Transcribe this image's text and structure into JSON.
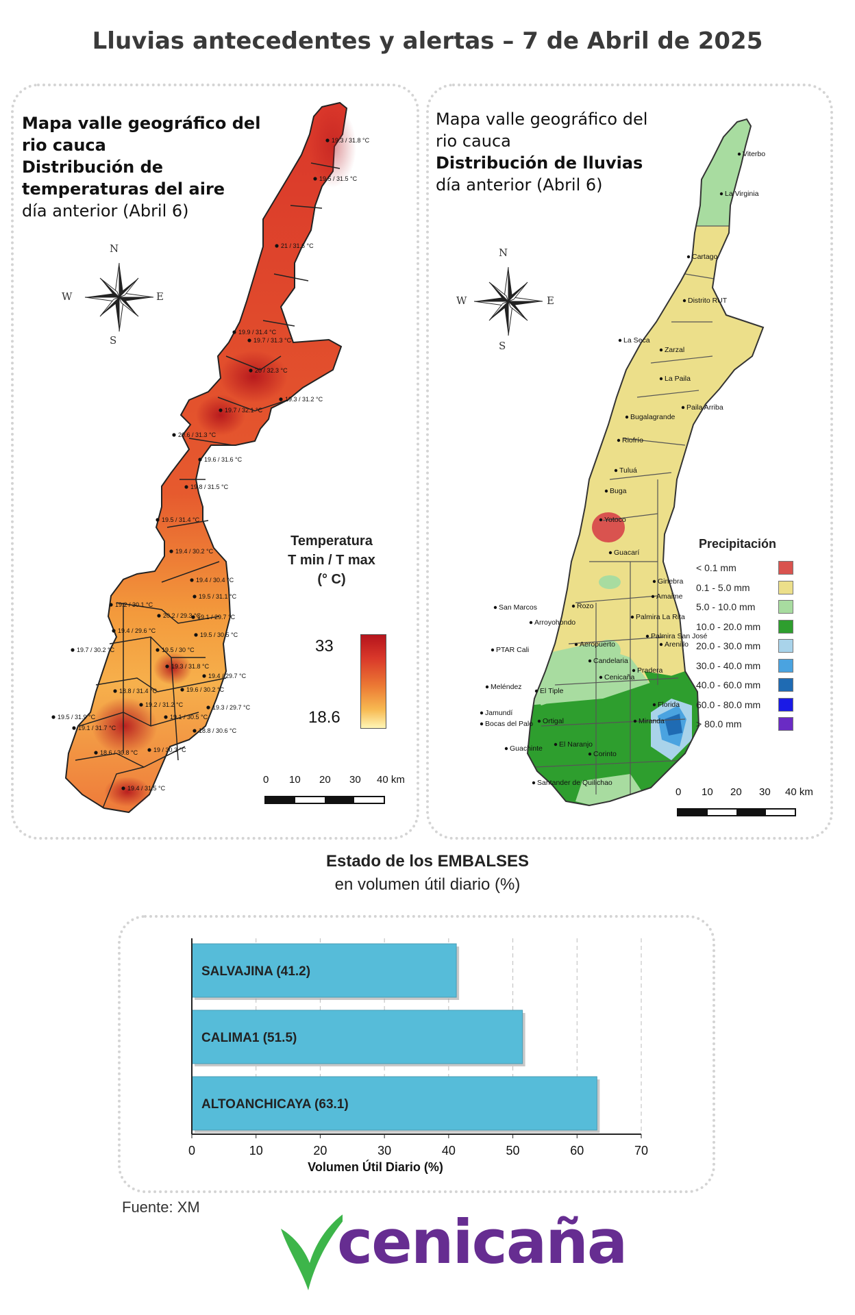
{
  "title": "Lluvias antecedentes y alertas – 7 de Abril de 2025",
  "temp_map": {
    "title_lines_bold": [
      "Mapa valle geográfico del",
      "rio cauca",
      "Distribución de",
      "temperaturas del aire"
    ],
    "subtitle": "día anterior (Abril 6)",
    "legend_title": [
      "Temperatura",
      "T min / T max",
      "(° C)"
    ],
    "legend_max": "33",
    "legend_min": "18.6",
    "station_labels": [
      "19.3 / 31.8 °C",
      "19.5 / 31.5 °C",
      "21 / 31.6 °C",
      "19.9 / 31.4 °C",
      "19.7 / 31.3 °C",
      "20 / 32.3 °C",
      "19.3 / 31.2 °C",
      "19.7 / 32.1 °C",
      "20.6 / 31.3 °C",
      "19.6 / 31.6 °C",
      "19.8 / 31.5 °C",
      "19.5 / 31.4 °C",
      "19.4 / 30.2 °C",
      "19.4 / 30.4 °C",
      "19.5 / 31.1 °C",
      "19.2 / 30.1 °C",
      "20.2 / 29.3 °C",
      "19.1 / 29.7 °C",
      "19.4 / 29.6 °C",
      "19.5 / 30.5 °C",
      "19.7 / 30.2 °C",
      "19.5 / 30 °C",
      "19.3 / 31.8 °C",
      "19.4 / 29.7 °C",
      "18.8 / 31.4 °C",
      "19.6 / 30.2 °C",
      "19.2 / 31.2 °C",
      "19.3 / 29.7 °C",
      "19.5 / 31.9 °C",
      "19.1 / 31.7 °C",
      "19.1 / 30.5 °C",
      "18.8 / 30.6 °C",
      "18.6 / 30.8 °C",
      "19 / 30.3 °C",
      "19.4 / 31.5 °C"
    ]
  },
  "rain_map": {
    "title_lines": [
      "Mapa valle geográfico del",
      "rio cauca"
    ],
    "title_bold": "Distribución de lluvias",
    "subtitle": "día anterior (Abril 6)",
    "legend_title": "Precipitación",
    "legend": [
      {
        "label": "< 0.1 mm",
        "color": "#d9534f"
      },
      {
        "label": "0.1 - 5.0 mm",
        "color": "#ecdf8a"
      },
      {
        "label": "5.0 - 10.0 mm",
        "color": "#a8dca0"
      },
      {
        "label": "10.0 - 20.0 mm",
        "color": "#2e9e2e"
      },
      {
        "label": "20.0 - 30.0 mm",
        "color": "#a9d3ea"
      },
      {
        "label": "30.0 - 40.0 mm",
        "color": "#4aa3e0"
      },
      {
        "label": "40.0 - 60.0 mm",
        "color": "#1f6bb3"
      },
      {
        "label": "60.0 - 80.0 mm",
        "color": "#1a1ae6"
      },
      {
        "label": "> 80.0 mm",
        "color": "#6a2bc4"
      }
    ],
    "places": [
      "Viterbo",
      "La Virginia",
      "Cartago",
      "Distrito RUT",
      "La Seca",
      "Zarzal",
      "La Paila",
      "Paila Arriba",
      "Bugalagrande",
      "Riofrío",
      "Tuluá",
      "Buga",
      "Yotoco",
      "Guacarí",
      "Ginebra",
      "Amaime",
      "San Marcos",
      "Rozo",
      "Palmira La Rita",
      "Arroyohondo",
      "Palmira San José",
      "Aeropuerto",
      "Arenillo",
      "PTAR Cali",
      "Candelaria",
      "Pradera",
      "Cenicaña",
      "Meléndez",
      "El Tiple",
      "Florida",
      "Jamundí",
      "Bocas del Palo",
      "Ortigal",
      "Miranda",
      "El Naranjo",
      "Guachinte",
      "Corinto",
      "Santander de Quilichao"
    ]
  },
  "compass": {
    "n": "N",
    "s": "S",
    "e": "E",
    "w": "W"
  },
  "scale_labels": [
    "0",
    "10",
    "20",
    "30",
    "40 km"
  ],
  "reservoirs": {
    "title": "Estado de los EMBALSES",
    "subtitle": "en volumen útil diario (%)",
    "source": "Fuente: XM"
  },
  "chart_data": {
    "type": "bar",
    "orientation": "horizontal",
    "categories": [
      "SALVAJINA (41.2)",
      "CALIMA1 (51.5)",
      "ALTOANCHICAYA (63.1)"
    ],
    "values": [
      41.2,
      51.5,
      63.1
    ],
    "xlabel": "Volumen Útil Diario (%)",
    "xlim": [
      0,
      70
    ],
    "xticks": [
      0,
      10,
      20,
      30,
      40,
      50,
      60,
      70
    ],
    "bar_color": "#56bcd9",
    "grid": "vertical dashed"
  },
  "logo": {
    "text": "cenicaña",
    "text_color": "#662d91",
    "mark_color": "#3db54a"
  }
}
